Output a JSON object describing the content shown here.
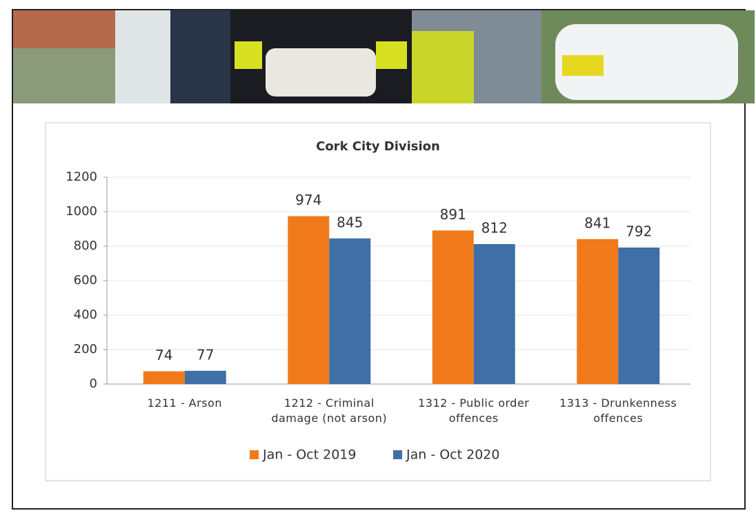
{
  "chart_data": {
    "type": "bar",
    "title": "Cork City Division",
    "categories": [
      "1211 - Arson",
      "1212 - Criminal damage (not arson)",
      "1312 - Public order offences",
      "1313 - Drunkenness offences"
    ],
    "series": [
      {
        "name": "Jan - Oct 2019",
        "color": "#f07a1a",
        "values": [
          74,
          974,
          891,
          841
        ]
      },
      {
        "name": "Jan - Oct 2020",
        "color": "#3f6fa6",
        "values": [
          77,
          845,
          812,
          792
        ]
      }
    ],
    "ylim": [
      0,
      1200
    ],
    "yticks": [
      0,
      200,
      400,
      600,
      800,
      1000,
      1200
    ],
    "grid": true,
    "legend": "bottom"
  }
}
